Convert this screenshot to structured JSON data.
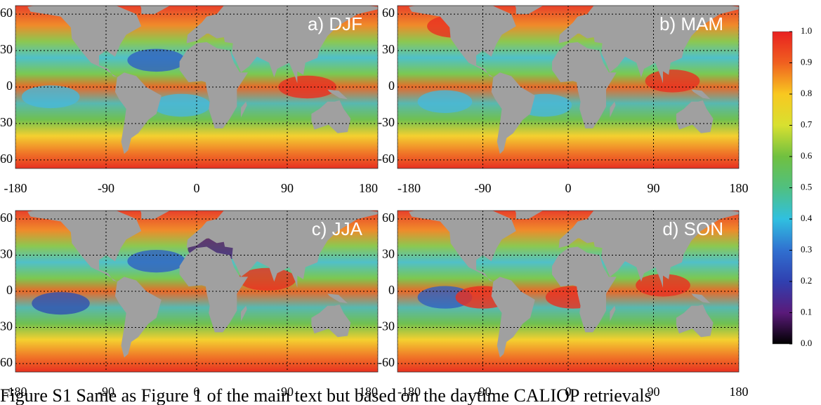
{
  "panels": [
    {
      "label": "a) DJF"
    },
    {
      "label": "b) MAM"
    },
    {
      "label": "c) JJA"
    },
    {
      "label": "d) SON"
    }
  ],
  "xticks": [
    -180,
    -90,
    0,
    90,
    180
  ],
  "yticks": [
    60,
    30,
    0,
    -30,
    -60
  ],
  "xlim": [
    -180,
    180
  ],
  "ylim": [
    -67,
    67
  ],
  "colorbar": {
    "lim": [
      0,
      1
    ],
    "ticks": [
      {
        "value": 1,
        "label": "1.0"
      },
      0.9,
      0.8,
      0.7,
      0.6,
      0.5,
      0.4,
      0.3,
      0.2,
      0.1,
      {
        "value": 0,
        "label": "0.0"
      }
    ]
  },
  "caption": "Figure S1 Same as Figure 1 of the main text but based on the daytime CALIOP retrievals"
}
